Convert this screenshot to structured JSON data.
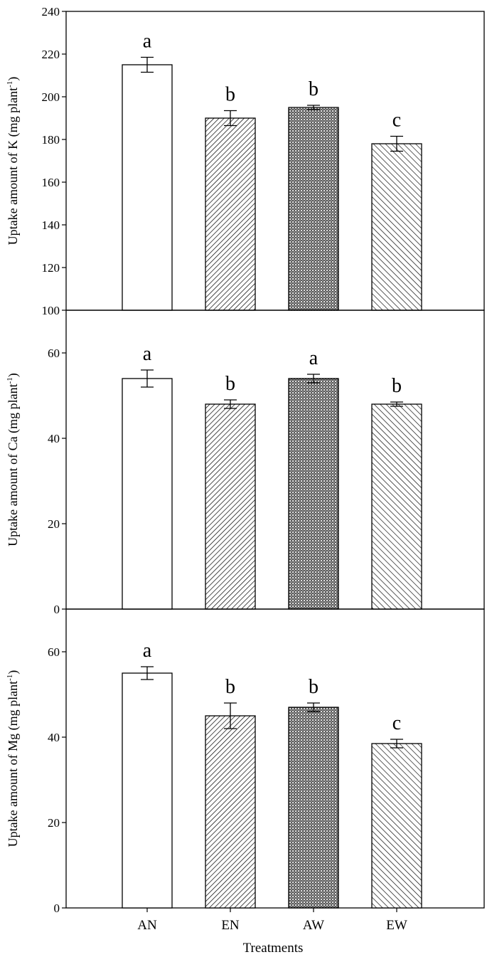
{
  "x_axis_title": "Treatments",
  "chart_data": [
    {
      "type": "bar",
      "ylabel": "Uptake amount of K (mg plant-1)",
      "ylabel_main": "Uptake amount of K (mg plant",
      "ylabel_sup": "-1",
      "ylabel_close": ")",
      "categories": [
        "AN",
        "EN",
        "AW",
        "EW"
      ],
      "values": [
        215,
        190,
        195,
        178
      ],
      "errors": [
        3.5,
        3.5,
        1.0,
        3.5
      ],
      "letters": [
        "a",
        "b",
        "b",
        "c"
      ],
      "ylim": [
        100,
        240
      ],
      "yticks": [
        100,
        120,
        140,
        160,
        180,
        200,
        220,
        240
      ]
    },
    {
      "type": "bar",
      "ylabel": "Uptake amount of Ca (mg plant-1)",
      "ylabel_main": "Uptake amount of Ca (mg plant",
      "ylabel_sup": "-1",
      "ylabel_close": ")",
      "categories": [
        "AN",
        "EN",
        "AW",
        "EW"
      ],
      "values": [
        54,
        48,
        54,
        48
      ],
      "errors": [
        2.0,
        1.0,
        1.0,
        0.5
      ],
      "letters": [
        "a",
        "b",
        "a",
        "b"
      ],
      "ylim": [
        0,
        70
      ],
      "yticks": [
        0,
        20,
        40,
        60
      ]
    },
    {
      "type": "bar",
      "ylabel": "Uptake amount of Mg (mg plant-1)",
      "ylabel_main": "Uptake amount of Mg (mg plant",
      "ylabel_sup": "-1",
      "ylabel_close": ")",
      "categories": [
        "AN",
        "EN",
        "AW",
        "EW"
      ],
      "values": [
        55,
        45,
        47,
        38.5
      ],
      "errors": [
        1.5,
        3.0,
        1.0,
        1.0
      ],
      "letters": [
        "a",
        "b",
        "b",
        "c"
      ],
      "ylim": [
        0,
        70
      ],
      "yticks": [
        0,
        20,
        40,
        60
      ]
    }
  ],
  "bar_patterns": [
    "none",
    "diag-fine",
    "dots",
    "diag-back"
  ]
}
